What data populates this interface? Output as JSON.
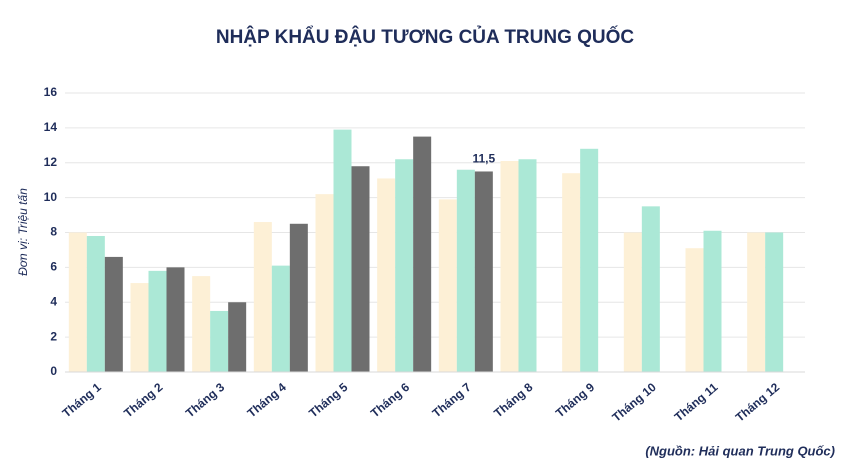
{
  "chart_data": {
    "type": "bar",
    "title": "NHẬP KHẨU ĐẬU TƯƠNG CỦA TRUNG QUỐC",
    "y_label": "Đơn vị: Triệu tấn",
    "source": "(Nguồn: Hải quan Trung Quốc)",
    "categories": [
      "Tháng 1",
      "Tháng 2",
      "Tháng 3",
      "Tháng 4",
      "Tháng 5",
      "Tháng 6",
      "Tháng 7",
      "Tháng 8",
      "Tháng 9",
      "Tháng 10",
      "Tháng 11",
      "Tháng 12"
    ],
    "series": [
      {
        "color": "#fdf0d6",
        "values": [
          8.0,
          5.1,
          5.5,
          8.6,
          10.2,
          11.1,
          9.9,
          12.1,
          11.4,
          8.0,
          7.1,
          8.0
        ]
      },
      {
        "color": "#abe8d6",
        "values": [
          7.8,
          5.8,
          3.5,
          6.1,
          13.9,
          12.2,
          11.6,
          12.2,
          12.8,
          9.5,
          8.1,
          8.0
        ]
      },
      {
        "color": "#6e6e6e",
        "values": [
          6.6,
          6.0,
          4.0,
          8.5,
          11.8,
          13.5,
          11.5,
          null,
          null,
          null,
          null,
          null
        ],
        "value_labels": [
          null,
          null,
          null,
          null,
          null,
          null,
          "11,5",
          null,
          null,
          null,
          null,
          null
        ]
      }
    ],
    "ylim": [
      0,
      16
    ],
    "yticks": [
      0,
      2,
      4,
      6,
      8,
      10,
      12,
      14,
      16
    ],
    "grid": true
  }
}
